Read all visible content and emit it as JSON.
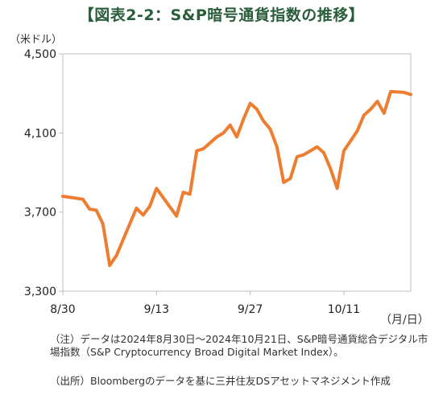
{
  "chart_data": {
    "type": "line",
    "title": "【図表2-2：S&P暗号通貨指数の推移】",
    "ylabel": "（米ドル）",
    "xlabel": "（月/日）",
    "ylim": [
      3300,
      4500
    ],
    "yticks": [
      3300,
      3700,
      4100,
      4500
    ],
    "ytick_labels": [
      "3,300",
      "3,700",
      "4,100",
      "4,500"
    ],
    "xticks": [
      {
        "date": "2024-08-30",
        "label": "8/30"
      },
      {
        "date": "2024-09-13",
        "label": "9/13"
      },
      {
        "date": "2024-09-27",
        "label": "9/27"
      },
      {
        "date": "2024-10-11",
        "label": "10/11"
      }
    ],
    "xlim": [
      "2024-08-30",
      "2024-10-21"
    ],
    "grid": false,
    "legend": "none",
    "series": [
      {
        "color": "#ed7d31",
        "points": [
          [
            "2024-08-30",
            3780
          ],
          [
            "2024-09-02",
            3765
          ],
          [
            "2024-09-03",
            3715
          ],
          [
            "2024-09-04",
            3710
          ],
          [
            "2024-09-05",
            3640
          ],
          [
            "2024-09-06",
            3430
          ],
          [
            "2024-09-07",
            3480
          ],
          [
            "2024-09-08",
            3560
          ],
          [
            "2024-09-09",
            3640
          ],
          [
            "2024-09-10",
            3720
          ],
          [
            "2024-09-11",
            3685
          ],
          [
            "2024-09-12",
            3730
          ],
          [
            "2024-09-13",
            3820
          ],
          [
            "2024-09-16",
            3680
          ],
          [
            "2024-09-17",
            3800
          ],
          [
            "2024-09-18",
            3790
          ],
          [
            "2024-09-19",
            4010
          ],
          [
            "2024-09-20",
            4020
          ],
          [
            "2024-09-21",
            4050
          ],
          [
            "2024-09-22",
            4080
          ],
          [
            "2024-09-23",
            4100
          ],
          [
            "2024-09-24",
            4140
          ],
          [
            "2024-09-25",
            4080
          ],
          [
            "2024-09-26",
            4170
          ],
          [
            "2024-09-27",
            4250
          ],
          [
            "2024-09-28",
            4220
          ],
          [
            "2024-09-29",
            4160
          ],
          [
            "2024-09-30",
            4120
          ],
          [
            "2024-10-01",
            4030
          ],
          [
            "2024-10-02",
            3850
          ],
          [
            "2024-10-03",
            3870
          ],
          [
            "2024-10-04",
            3980
          ],
          [
            "2024-10-05",
            3990
          ],
          [
            "2024-10-06",
            4010
          ],
          [
            "2024-10-07",
            4030
          ],
          [
            "2024-10-08",
            4000
          ],
          [
            "2024-10-09",
            3920
          ],
          [
            "2024-10-10",
            3820
          ],
          [
            "2024-10-11",
            4010
          ],
          [
            "2024-10-12",
            4060
          ],
          [
            "2024-10-13",
            4110
          ],
          [
            "2024-10-14",
            4190
          ],
          [
            "2024-10-15",
            4220
          ],
          [
            "2024-10-16",
            4260
          ],
          [
            "2024-10-17",
            4200
          ],
          [
            "2024-10-18",
            4310
          ],
          [
            "2024-10-20",
            4305
          ],
          [
            "2024-10-21",
            4295
          ]
        ]
      }
    ]
  },
  "notes": {
    "note_label": "（注）",
    "note_text": "データは2024年8月30日～2024年10月21日、S&P暗号通貨総合デジタル市場指数（S&P Cryptocurrency Broad Digital Market Index）。",
    "source_label": "（出所）",
    "source_text": "Bloombergのデータを基に三井住友DSアセットマネジメント作成"
  },
  "colors": {
    "line": "#ed7d31",
    "title": "#2a5d3a",
    "axis": "#bfbfbf"
  }
}
